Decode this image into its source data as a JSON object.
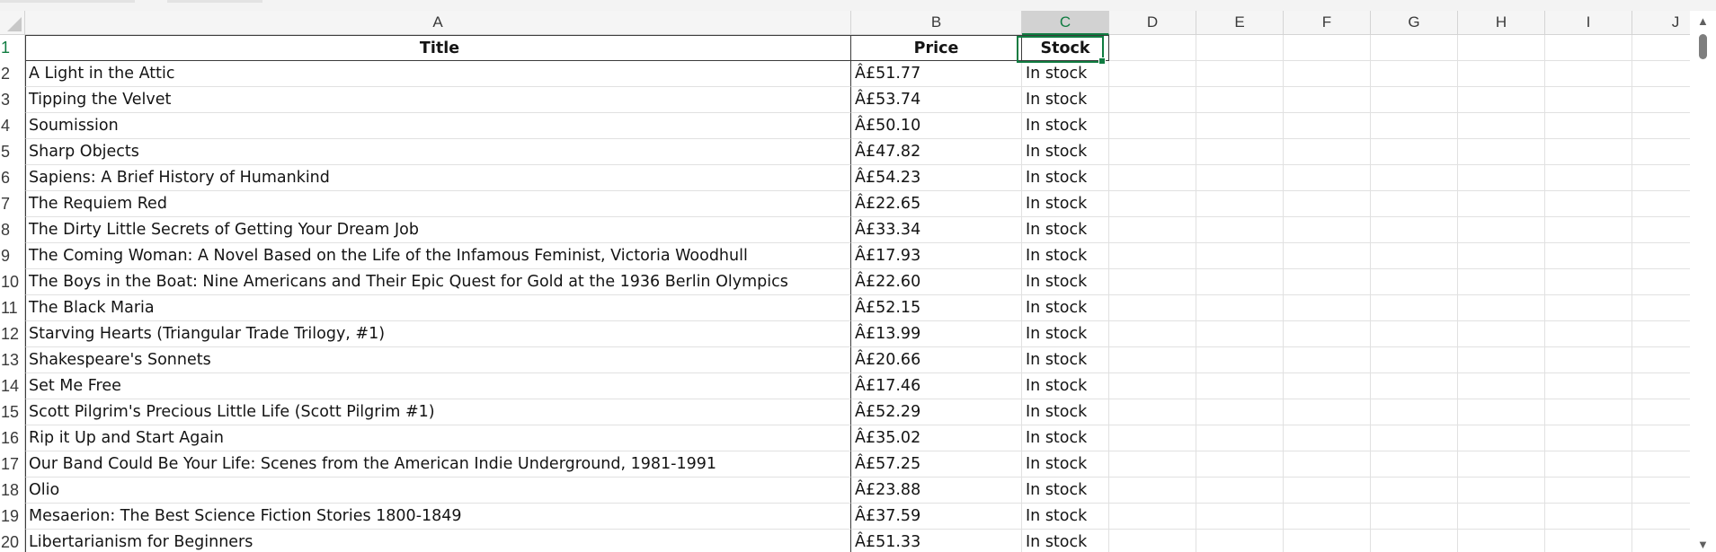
{
  "columns": [
    "A",
    "B",
    "C",
    "D",
    "E",
    "F",
    "G",
    "H",
    "I",
    "J"
  ],
  "row_numbers": [
    "1",
    "2",
    "3",
    "4",
    "5",
    "6",
    "7",
    "8",
    "9",
    "10",
    "11",
    "12",
    "13",
    "14",
    "15",
    "16",
    "17",
    "18",
    "19",
    "20"
  ],
  "header": {
    "title": "Title",
    "price": "Price",
    "stock": "Stock"
  },
  "rows": [
    {
      "title": "A Light in the Attic",
      "price": "Â£51.77",
      "stock": "In stock"
    },
    {
      "title": "Tipping the Velvet",
      "price": "Â£53.74",
      "stock": "In stock"
    },
    {
      "title": "Soumission",
      "price": "Â£50.10",
      "stock": "In stock"
    },
    {
      "title": "Sharp Objects",
      "price": "Â£47.82",
      "stock": "In stock"
    },
    {
      "title": "Sapiens: A Brief History of Humankind",
      "price": "Â£54.23",
      "stock": "In stock"
    },
    {
      "title": "The Requiem Red",
      "price": "Â£22.65",
      "stock": "In stock"
    },
    {
      "title": "The Dirty Little Secrets of Getting Your Dream Job",
      "price": "Â£33.34",
      "stock": "In stock"
    },
    {
      "title": "The Coming Woman: A Novel Based on the Life of the Infamous Feminist, Victoria Woodhull",
      "price": "Â£17.93",
      "stock": "In stock"
    },
    {
      "title": "The Boys in the Boat: Nine Americans and Their Epic Quest for Gold at the 1936 Berlin Olympics",
      "price": "Â£22.60",
      "stock": "In stock"
    },
    {
      "title": "The Black Maria",
      "price": "Â£52.15",
      "stock": "In stock"
    },
    {
      "title": "Starving Hearts (Triangular Trade Trilogy, #1)",
      "price": "Â£13.99",
      "stock": "In stock"
    },
    {
      "title": "Shakespeare's Sonnets",
      "price": "Â£20.66",
      "stock": "In stock"
    },
    {
      "title": "Set Me Free",
      "price": "Â£17.46",
      "stock": "In stock"
    },
    {
      "title": "Scott Pilgrim's Precious Little Life (Scott Pilgrim #1)",
      "price": "Â£52.29",
      "stock": "In stock"
    },
    {
      "title": "Rip it Up and Start Again",
      "price": "Â£35.02",
      "stock": "In stock"
    },
    {
      "title": "Our Band Could Be Your Life: Scenes from the American Indie Underground, 1981-1991",
      "price": "Â£57.25",
      "stock": "In stock"
    },
    {
      "title": "Olio",
      "price": "Â£23.88",
      "stock": "In stock"
    },
    {
      "title": "Mesaerion: The Best Science Fiction Stories 1800-1849",
      "price": "Â£37.59",
      "stock": "In stock"
    },
    {
      "title": "Libertarianism for Beginners",
      "price": "Â£51.33",
      "stock": "In stock"
    }
  ],
  "selection": {
    "active_cell": "C1"
  }
}
